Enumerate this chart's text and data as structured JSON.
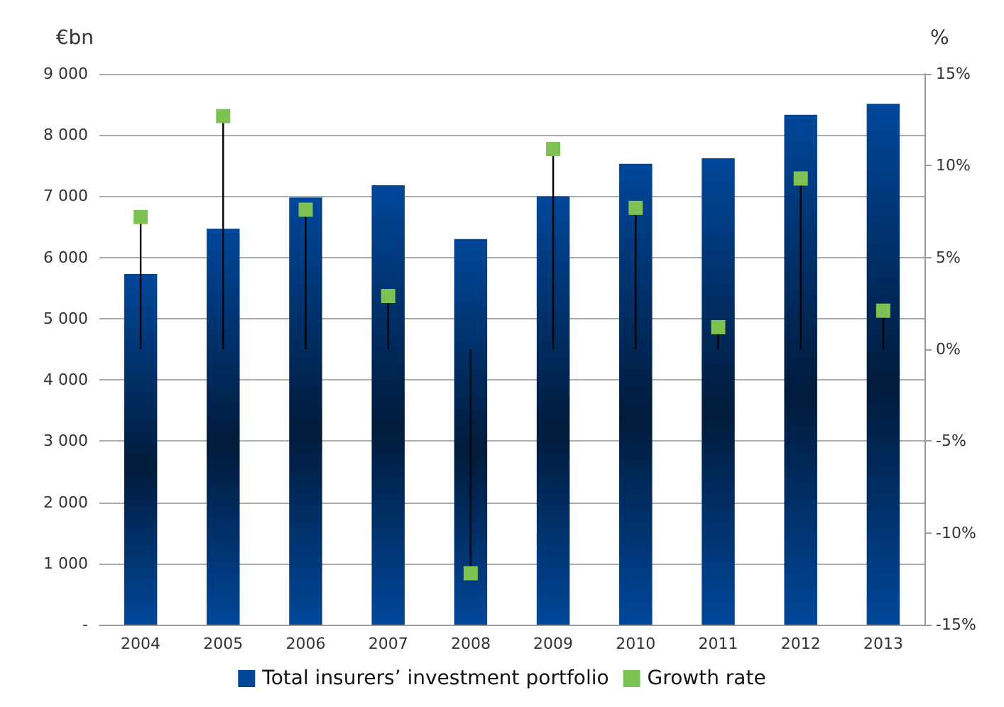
{
  "chart_data": {
    "type": "bar",
    "ylabel": "€bn",
    "y2label": "%",
    "categories": [
      "2004",
      "2005",
      "2006",
      "2007",
      "2008",
      "2009",
      "2010",
      "2011",
      "2012",
      "2013"
    ],
    "series": [
      {
        "name": "Total insurers’ investment portfolio",
        "color": "#00479a",
        "values": [
          5730,
          6470,
          6980,
          7180,
          6300,
          7000,
          7530,
          7620,
          8330,
          8510
        ]
      },
      {
        "name": "Growth rate",
        "type": "lollipop",
        "axis": "y2",
        "color": "#7dc253",
        "values": [
          7.2,
          12.7,
          7.6,
          2.9,
          -12.2,
          10.9,
          7.7,
          1.2,
          9.3,
          2.1
        ]
      }
    ],
    "ylim": [
      0,
      9000
    ],
    "yticks": [
      {
        "value": 0,
        "label": "-"
      },
      {
        "value": 1000,
        "label": "1 000"
      },
      {
        "value": 2000,
        "label": "2 000"
      },
      {
        "value": 3000,
        "label": "3 000"
      },
      {
        "value": 4000,
        "label": "4 000"
      },
      {
        "value": 5000,
        "label": "5 000"
      },
      {
        "value": 6000,
        "label": "6 000"
      },
      {
        "value": 7000,
        "label": "7 000"
      },
      {
        "value": 8000,
        "label": "8 000"
      },
      {
        "value": 9000,
        "label": "9 000"
      }
    ],
    "y2lim": [
      -15,
      15
    ],
    "y2ticks": [
      {
        "value": -15,
        "label": "-15%"
      },
      {
        "value": -10,
        "label": "-10%"
      },
      {
        "value": -5,
        "label": "-5%"
      },
      {
        "value": 0,
        "label": "0%"
      },
      {
        "value": 5,
        "label": "5%"
      },
      {
        "value": 10,
        "label": "10%"
      },
      {
        "value": 15,
        "label": "15%"
      }
    ],
    "grid": "y",
    "legend": "bottom",
    "marker": "square"
  }
}
